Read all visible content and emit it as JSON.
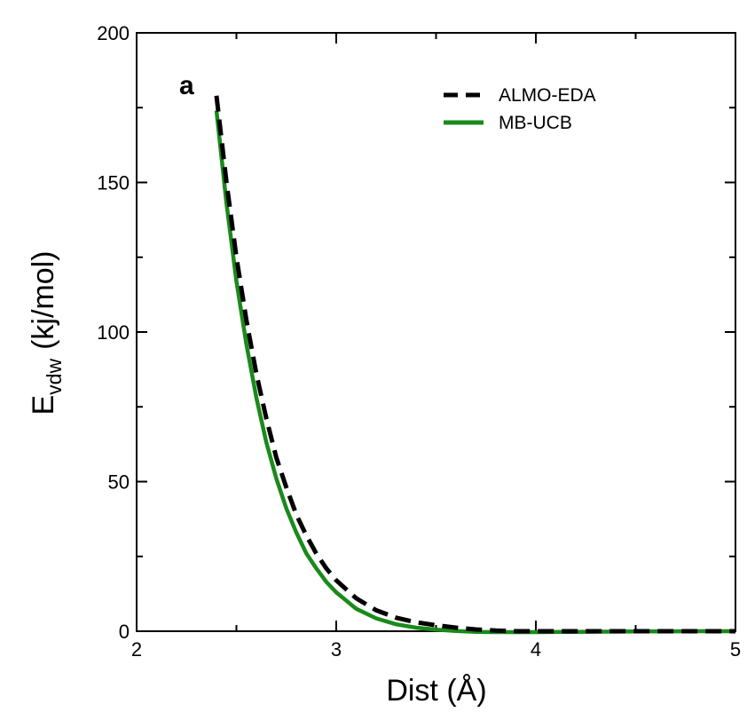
{
  "chart_data": {
    "type": "line",
    "panel_label": "a",
    "xlabel": "Dist (Å)",
    "ylabel_main": "E",
    "ylabel_sub": "vdw",
    "ylabel_unit": "(kj/mol)",
    "xlim": [
      2,
      5
    ],
    "ylim": [
      0,
      200
    ],
    "x_ticks": [
      2,
      3,
      4,
      5
    ],
    "y_ticks": [
      0,
      50,
      100,
      150,
      200
    ],
    "x_tick_labels": [
      "2",
      "3",
      "4",
      "5"
    ],
    "y_tick_labels": [
      "0",
      "50",
      "100",
      "150",
      "200"
    ],
    "legend_position": "top-right",
    "series": [
      {
        "name": "ALMO-EDA",
        "color": "#000000",
        "style": "dashed",
        "x": [
          2.4,
          2.45,
          2.5,
          2.55,
          2.6,
          2.65,
          2.7,
          2.75,
          2.8,
          2.85,
          2.9,
          2.95,
          3.0,
          3.1,
          3.2,
          3.3,
          3.4,
          3.5,
          3.6,
          3.7,
          3.8,
          3.9,
          4.0,
          4.2,
          4.5,
          4.8,
          5.0
        ],
        "y": [
          179,
          150,
          125,
          104,
          86,
          71,
          58,
          48,
          39,
          32,
          26,
          21,
          17,
          11,
          7,
          4.5,
          3,
          2,
          1.2,
          0.6,
          0.2,
          0,
          0,
          0,
          0,
          0,
          0
        ]
      },
      {
        "name": "MB-UCB",
        "color": "#1a8a1a",
        "style": "solid",
        "x": [
          2.4,
          2.45,
          2.5,
          2.55,
          2.6,
          2.65,
          2.7,
          2.75,
          2.8,
          2.85,
          2.9,
          2.95,
          3.0,
          3.1,
          3.2,
          3.3,
          3.4,
          3.5,
          3.6,
          3.7,
          3.8,
          3.9,
          4.0,
          4.2,
          4.5,
          4.8,
          5.0
        ],
        "y": [
          174,
          143,
          117,
          96,
          78,
          63,
          51,
          41,
          33,
          26,
          21,
          16.5,
          13,
          7.5,
          4.3,
          2.3,
          1.2,
          0.5,
          0.1,
          -0.2,
          -0.3,
          -0.3,
          -0.3,
          -0.2,
          -0.1,
          0,
          0
        ]
      }
    ]
  }
}
